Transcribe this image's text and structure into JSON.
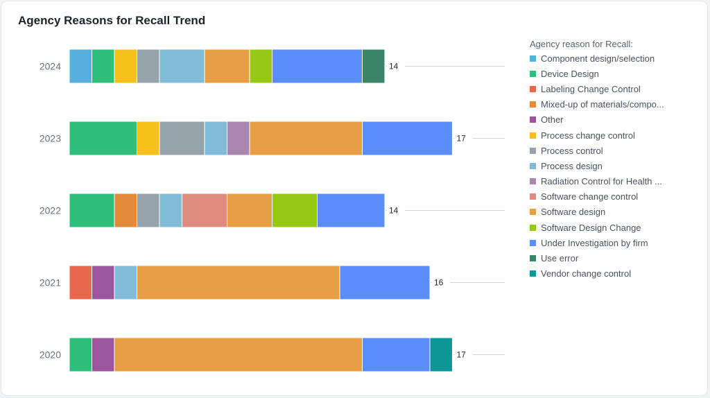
{
  "chart_data": {
    "type": "bar",
    "orientation": "horizontal",
    "stacked": true,
    "title": "Agency Reasons for Recall Trend",
    "categories": [
      "2024",
      "2023",
      "2022",
      "2021",
      "2020"
    ],
    "totals": [
      14,
      17,
      14,
      16,
      17
    ],
    "legend": {
      "title": "Agency reason for Recall:",
      "position": "right",
      "items": [
        {
          "label": "Component design/selection",
          "color": "#57b0de"
        },
        {
          "label": "Device Design",
          "color": "#2ebf7a"
        },
        {
          "label": "Labeling Change Control",
          "color": "#e8684b"
        },
        {
          "label": "Mixed-up of materials/compo...",
          "color": "#e48a3b"
        },
        {
          "label": "Other",
          "color": "#9b569e"
        },
        {
          "label": "Process change control",
          "color": "#f5c01b"
        },
        {
          "label": "Process control",
          "color": "#97a3ab"
        },
        {
          "label": "Process design",
          "color": "#80bcd7"
        },
        {
          "label": "Radiation Control for Health ...",
          "color": "#ab86b0"
        },
        {
          "label": "Software change control",
          "color": "#de8c80"
        },
        {
          "label": "Software design",
          "color": "#e79e45"
        },
        {
          "label": "Software Design Change",
          "color": "#95c916"
        },
        {
          "label": "Under Investigation by firm",
          "color": "#5b8ef8"
        },
        {
          "label": "Use error",
          "color": "#3a8569"
        },
        {
          "label": "Vendor change control",
          "color": "#0c9796"
        }
      ]
    },
    "series": [
      {
        "name": "Component design/selection",
        "color": "#57b0de",
        "values": [
          1,
          0,
          0,
          0,
          0
        ]
      },
      {
        "name": "Device Design",
        "color": "#2ebf7a",
        "values": [
          1,
          3,
          2,
          0,
          1
        ]
      },
      {
        "name": "Labeling Change Control",
        "color": "#e8684b",
        "values": [
          0,
          0,
          0,
          1,
          0
        ]
      },
      {
        "name": "Mixed-up of materials/compo...",
        "color": "#e48a3b",
        "values": [
          0,
          0,
          1,
          0,
          0
        ]
      },
      {
        "name": "Other",
        "color": "#9b569e",
        "values": [
          0,
          0,
          0,
          1,
          1
        ]
      },
      {
        "name": "Process change control",
        "color": "#f5c01b",
        "values": [
          1,
          1,
          0,
          0,
          0
        ]
      },
      {
        "name": "Process control",
        "color": "#97a3ab",
        "values": [
          1,
          2,
          1,
          0,
          0
        ]
      },
      {
        "name": "Process design",
        "color": "#80bcd7",
        "values": [
          2,
          1,
          1,
          1,
          0
        ]
      },
      {
        "name": "Radiation Control for Health ...",
        "color": "#ab86b0",
        "values": [
          0,
          1,
          0,
          0,
          0
        ]
      },
      {
        "name": "Software change control",
        "color": "#de8c80",
        "values": [
          0,
          0,
          2,
          0,
          0
        ]
      },
      {
        "name": "Software design",
        "color": "#e79e45",
        "values": [
          2,
          5,
          2,
          9,
          11
        ]
      },
      {
        "name": "Software Design Change",
        "color": "#95c916",
        "values": [
          1,
          0,
          2,
          0,
          0
        ]
      },
      {
        "name": "Under Investigation by firm",
        "color": "#5b8ef8",
        "values": [
          4,
          4,
          3,
          4,
          3
        ]
      },
      {
        "name": "Use error",
        "color": "#3a8569",
        "values": [
          1,
          0,
          0,
          0,
          0
        ]
      },
      {
        "name": "Vendor change control",
        "color": "#0c9796",
        "values": [
          0,
          0,
          0,
          0,
          1
        ]
      }
    ],
    "xlim": [
      0,
      17
    ],
    "grid": false
  }
}
